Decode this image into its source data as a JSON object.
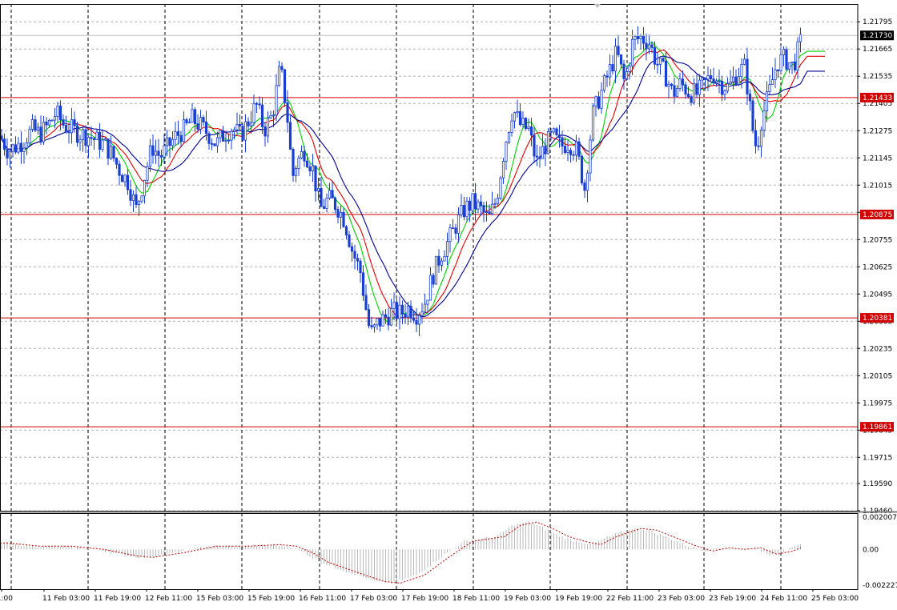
{
  "chart_data": [
    {
      "type": "candlestick",
      "panel": "main",
      "ylim": [
        1.1946,
        1.2188
      ],
      "grid": true,
      "y_ticks": [
        1.21795,
        1.21665,
        1.21535,
        1.21405,
        1.21275,
        1.21145,
        1.21015,
        1.20885,
        1.20755,
        1.20625,
        1.20495,
        1.20365,
        1.20235,
        1.20105,
        1.19975,
        1.19845,
        1.19715,
        1.1959,
        1.1946
      ],
      "y_tick_labels": [
        "1.21795",
        "1.21665",
        "1.21535",
        "1.21405",
        "1.21275",
        "1.21145",
        "1.21015",
        "1.20885",
        "1.20755",
        "1.20625",
        "1.20495",
        "1.20365",
        "1.20235",
        "1.20105",
        "1.19975",
        "1.19845",
        "1.19715",
        "1.19590",
        "1.19460"
      ],
      "current_price": "1.21730",
      "horizontal_lines": [
        {
          "label": "1.21433",
          "value": 1.21433
        },
        {
          "label": "1.20875",
          "value": 1.20875
        },
        {
          "label": "1.20381",
          "value": 1.20381
        },
        {
          "label": "1.19861",
          "value": 1.19861
        }
      ],
      "x_labels": [
        "1:00",
        "11 Feb 03:00",
        "11 Feb 19:00",
        "12 Feb 11:00",
        "15 Feb 03:00",
        "15 Feb 19:00",
        "16 Feb 11:00",
        "17 Feb 03:00",
        "17 Feb 19:00",
        "18 Feb 11:00",
        "19 Feb 03:00",
        "19 Feb 19:00",
        "22 Feb 11:00",
        "23 Feb 03:00",
        "23 Feb 19:00",
        "24 Feb 11:00",
        "25 Feb 03:00"
      ],
      "price_path": [
        [
          0,
          1.2125
        ],
        [
          10,
          1.2118
        ],
        [
          20,
          1.212
        ],
        [
          30,
          1.2123
        ],
        [
          40,
          1.2128
        ],
        [
          50,
          1.2126
        ],
        [
          60,
          1.213
        ],
        [
          70,
          1.2136
        ],
        [
          80,
          1.213
        ],
        [
          90,
          1.2128
        ],
        [
          100,
          1.2126
        ],
        [
          110,
          1.2125
        ],
        [
          120,
          1.2123
        ],
        [
          130,
          1.2121
        ],
        [
          140,
          1.2116
        ],
        [
          150,
          1.2108
        ],
        [
          160,
          1.2103
        ],
        [
          170,
          1.209
        ],
        [
          180,
          1.2105
        ],
        [
          190,
          1.212
        ],
        [
          200,
          1.2115
        ],
        [
          210,
          1.212
        ],
        [
          220,
          1.2125
        ],
        [
          230,
          1.2128
        ],
        [
          240,
          1.2133
        ],
        [
          250,
          1.213
        ],
        [
          260,
          1.2126
        ],
        [
          270,
          1.2121
        ],
        [
          280,
          1.2126
        ],
        [
          290,
          1.2129
        ],
        [
          300,
          1.2125
        ],
        [
          310,
          1.2132
        ],
        [
          320,
          1.214
        ],
        [
          330,
          1.2128
        ],
        [
          340,
          1.2135
        ],
        [
          350,
          1.2158
        ],
        [
          355,
          1.2145
        ],
        [
          360,
          1.213
        ],
        [
          365,
          1.2105
        ],
        [
          370,
          1.2112
        ],
        [
          380,
          1.2118
        ],
        [
          390,
          1.211
        ],
        [
          400,
          1.209
        ],
        [
          410,
          1.2095
        ],
        [
          420,
          1.2092
        ],
        [
          430,
          1.2085
        ],
        [
          440,
          1.207
        ],
        [
          450,
          1.206
        ],
        [
          460,
          1.2035
        ],
        [
          465,
          1.203
        ],
        [
          470,
          1.2035
        ],
        [
          480,
          1.2038
        ],
        [
          490,
          1.2041
        ],
        [
          500,
          1.204
        ],
        [
          510,
          1.2043
        ],
        [
          520,
          1.204
        ],
        [
          530,
          1.2045
        ],
        [
          540,
          1.2058
        ],
        [
          550,
          1.2068
        ],
        [
          560,
          1.2075
        ],
        [
          570,
          1.2083
        ],
        [
          580,
          1.209
        ],
        [
          590,
          1.2093
        ],
        [
          600,
          1.209
        ],
        [
          610,
          1.2085
        ],
        [
          620,
          1.2095
        ],
        [
          630,
          1.212
        ],
        [
          640,
          1.2138
        ],
        [
          650,
          1.213
        ],
        [
          660,
          1.2128
        ],
        [
          670,
          1.2112
        ],
        [
          680,
          1.212
        ],
        [
          690,
          1.2125
        ],
        [
          700,
          1.212
        ],
        [
          710,
          1.2122
        ],
        [
          720,
          1.2118
        ],
        [
          730,
          1.21
        ],
        [
          740,
          1.2135
        ],
        [
          750,
          1.2145
        ],
        [
          760,
          1.2155
        ],
        [
          770,
          1.2165
        ],
        [
          780,
          1.215
        ],
        [
          790,
          1.217
        ],
        [
          800,
          1.2172
        ],
        [
          810,
          1.217
        ],
        [
          820,
          1.216
        ],
        [
          830,
          1.2155
        ],
        [
          840,
          1.2145
        ],
        [
          850,
          1.215
        ],
        [
          860,
          1.2146
        ],
        [
          870,
          1.2145
        ],
        [
          880,
          1.215
        ],
        [
          890,
          1.2155
        ],
        [
          900,
          1.215
        ],
        [
          910,
          1.2148
        ],
        [
          920,
          1.2155
        ],
        [
          930,
          1.2158
        ],
        [
          940,
          1.2128
        ],
        [
          945,
          1.2118
        ],
        [
          950,
          1.2132
        ],
        [
          960,
          1.2145
        ],
        [
          970,
          1.216
        ],
        [
          980,
          1.2162
        ],
        [
          990,
          1.2158
        ],
        [
          1000,
          1.217
        ]
      ],
      "series": [
        {
          "indicator": "moving_average_fast",
          "color": "#00d000"
        },
        {
          "indicator": "moving_average_mid",
          "color": "#e00000"
        },
        {
          "indicator": "moving_average_slow",
          "color": "#000090"
        }
      ],
      "colors": {
        "candles": "#1a3fd0",
        "levels": "#d00000",
        "grid": "#a0a0a0",
        "panel_separator": "#808080"
      }
    },
    {
      "type": "histogram",
      "panel": "oscillator",
      "ylim": [
        -0.002227,
        0.002007
      ],
      "y_ticks": [
        0.002007,
        0.0,
        -0.002227
      ],
      "y_tick_labels": [
        "0.002007",
        "0.00",
        "-0.002227"
      ],
      "values": [
        [
          0,
          0.0004
        ],
        [
          40,
          0.0002
        ],
        [
          80,
          0.0002
        ],
        [
          120,
          0.0
        ],
        [
          160,
          -0.0004
        ],
        [
          180,
          -0.0005
        ],
        [
          220,
          -0.0002
        ],
        [
          260,
          0.0002
        ],
        [
          300,
          0.0002
        ],
        [
          340,
          0.0003
        ],
        [
          360,
          0.0002
        ],
        [
          380,
          -0.0002
        ],
        [
          400,
          -0.0008
        ],
        [
          440,
          -0.0015
        ],
        [
          470,
          -0.002
        ],
        [
          490,
          -0.0021
        ],
        [
          520,
          -0.0016
        ],
        [
          550,
          -0.0005
        ],
        [
          580,
          0.0005
        ],
        [
          620,
          0.0008
        ],
        [
          640,
          0.0015
        ],
        [
          660,
          0.0017
        ],
        [
          680,
          0.0013
        ],
        [
          700,
          0.0008
        ],
        [
          720,
          0.0005
        ],
        [
          740,
          0.0003
        ],
        [
          760,
          0.0008
        ],
        [
          790,
          0.0013
        ],
        [
          810,
          0.0012
        ],
        [
          830,
          0.0008
        ],
        [
          860,
          0.0002
        ],
        [
          880,
          -0.0001
        ],
        [
          900,
          0.0001
        ],
        [
          920,
          0.0
        ],
        [
          940,
          0.0001
        ],
        [
          960,
          -0.0003
        ],
        [
          980,
          -0.0001
        ],
        [
          1000,
          0.0003
        ]
      ],
      "signal_color": "#c00000",
      "bar_color": "#b8b8b8"
    }
  ]
}
